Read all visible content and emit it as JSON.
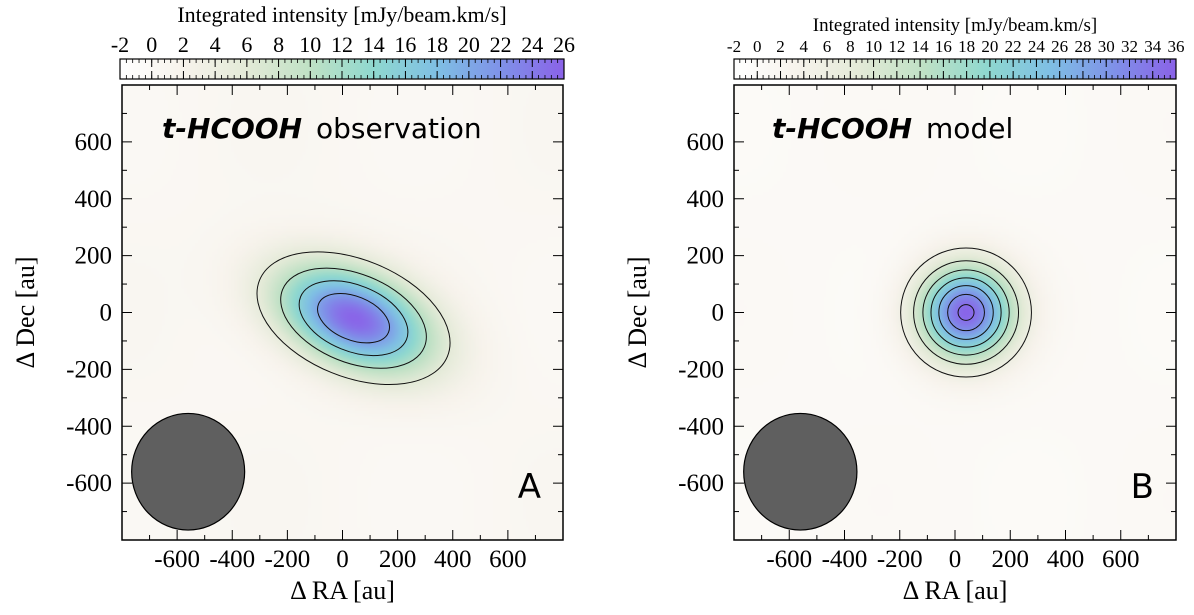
{
  "colors": {
    "background": "#ffffff",
    "beam": "#5f5f5f",
    "contour": "#111111",
    "colormap": [
      "#ffffff",
      "#f7f3ec",
      "#e3ead7",
      "#bfe1c5",
      "#8fd8cf",
      "#7fbfe4",
      "#7f92e8",
      "#8a62e8"
    ]
  },
  "chart_data": [
    {
      "type": "heatmap",
      "panel_letter": "A",
      "title_bold": "t-HCOOH",
      "title_rest": "observation",
      "xlabel": "Δ RA [au]",
      "ylabel": "Δ Dec [au]",
      "xlim": [
        -800,
        800
      ],
      "ylim": [
        -800,
        800
      ],
      "xticks": [
        -600,
        -400,
        -200,
        0,
        200,
        400,
        600
      ],
      "yticks": [
        -600,
        -400,
        -200,
        0,
        200,
        400,
        600
      ],
      "colorbar": {
        "label": "Integrated intensity [mJy/beam.km/s]",
        "min": -2,
        "max": 26,
        "ticks": [
          -2,
          0,
          2,
          4,
          6,
          8,
          10,
          12,
          14,
          16,
          18,
          20,
          22,
          24,
          26
        ]
      },
      "peak": 25,
      "contour_levels": [
        5,
        10,
        15,
        20
      ],
      "source": {
        "x": 40,
        "y": -20,
        "sx": 205,
        "sy": 115,
        "angle_deg": -22
      },
      "beam": {
        "x": -560,
        "y": -560,
        "radius": 205
      }
    },
    {
      "type": "heatmap",
      "panel_letter": "B",
      "title_bold": "t-HCOOH",
      "title_rest": "model",
      "xlabel": "Δ RA [au]",
      "ylabel": "Δ Dec [au]",
      "xlim": [
        -800,
        800
      ],
      "ylim": [
        -800,
        800
      ],
      "xticks": [
        -600,
        -400,
        -200,
        0,
        200,
        400,
        600
      ],
      "yticks": [
        -600,
        -400,
        -200,
        0,
        200,
        400,
        600
      ],
      "colorbar": {
        "label": "Integrated intensity [mJy/beam.km/s]",
        "min": -2,
        "max": 36,
        "ticks": [
          -2,
          0,
          2,
          4,
          6,
          8,
          10,
          12,
          14,
          16,
          18,
          20,
          22,
          24,
          26,
          28,
          30,
          32,
          34,
          36
        ]
      },
      "peak": 35,
      "contour_levels": [
        5,
        10,
        15,
        20,
        25,
        30,
        34
      ],
      "source": {
        "x": 40,
        "y": 0,
        "sx": 120,
        "sy": 115,
        "angle_deg": 0
      },
      "beam": {
        "x": -560,
        "y": -560,
        "radius": 205
      }
    }
  ]
}
